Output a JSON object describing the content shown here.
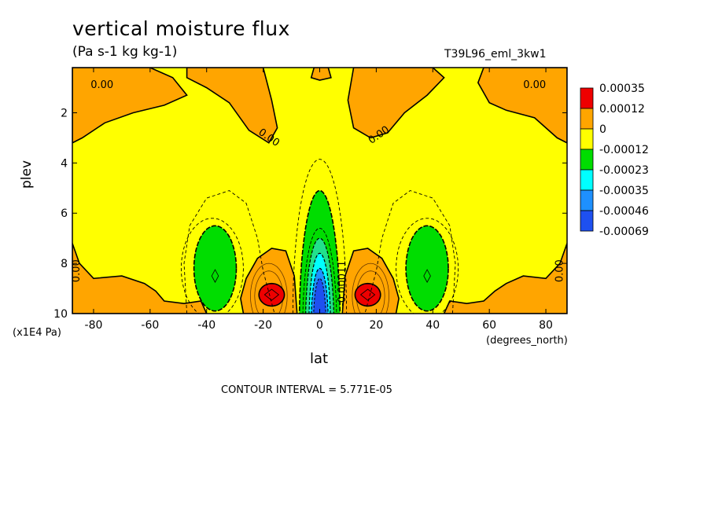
{
  "chart_data": {
    "type": "heatmap",
    "title": "vertical moisture flux",
    "units": "(Pa s-1 kg kg-1)",
    "run_label": "T39L96_eml_3kw1",
    "xlabel": "lat",
    "ylabel": "plev",
    "x_unit_label": "(degrees_north)",
    "y_unit_label": "(x1E4 Pa)",
    "x_ticks": [
      -80,
      -60,
      -40,
      -20,
      0,
      20,
      40,
      60,
      80
    ],
    "y_ticks": [
      2,
      4,
      6,
      8,
      10
    ],
    "xlim": [
      -87.5,
      87.5
    ],
    "ylim": [
      10,
      0.2
    ],
    "contour_interval_text": "CONTOUR INTERVAL = 5.771E-05",
    "contour_labels": [
      {
        "text": "0.00",
        "x": -77,
        "y": 0.9
      },
      {
        "text": "0.00",
        "x": -18,
        "y": 3.0
      },
      {
        "text": "0.00",
        "x": 21,
        "y": 2.9
      },
      {
        "text": "0.00",
        "x": 76,
        "y": 0.9
      },
      {
        "text": "0.00",
        "x": -86,
        "y": 8.3
      },
      {
        "text": "0.00",
        "x": 85,
        "y": 8.3
      },
      {
        "text": "-0.00011",
        "x": 8,
        "y": 8.8
      }
    ],
    "legend": [
      {
        "label": "0.00035",
        "color": "#ee0000"
      },
      {
        "label": "0.00012",
        "color": "#ffa500"
      },
      {
        "label": "0",
        "color": "#ffff00"
      },
      {
        "label": "-0.00012",
        "color": "#00dd00"
      },
      {
        "label": "-0.00023",
        "color": "#00ffff"
      },
      {
        "label": "-0.00035",
        "color": "#1e90ff"
      },
      {
        "label": "-0.00046",
        "color": "#1e50f0"
      },
      {
        "label": "-0.00069",
        "color": ""
      }
    ],
    "regions": {
      "background": {
        "level": "0 to -0.00012",
        "color": "#ffff00"
      },
      "positive_orange": {
        "color": "#ffa500"
      },
      "max_red": {
        "color": "#ee0000",
        "centers": [
          {
            "x": -17,
            "y": 9.25
          },
          {
            "x": 17,
            "y": 9.25
          }
        ]
      },
      "equatorial_min": {
        "x": 0,
        "y": 9.0
      },
      "green": {
        "color": "#00dd00"
      },
      "cyan": {
        "color": "#00ffff"
      },
      "blue": {
        "color": "#1e90ff"
      },
      "darkblue": {
        "color": "#1e50f0"
      }
    }
  }
}
